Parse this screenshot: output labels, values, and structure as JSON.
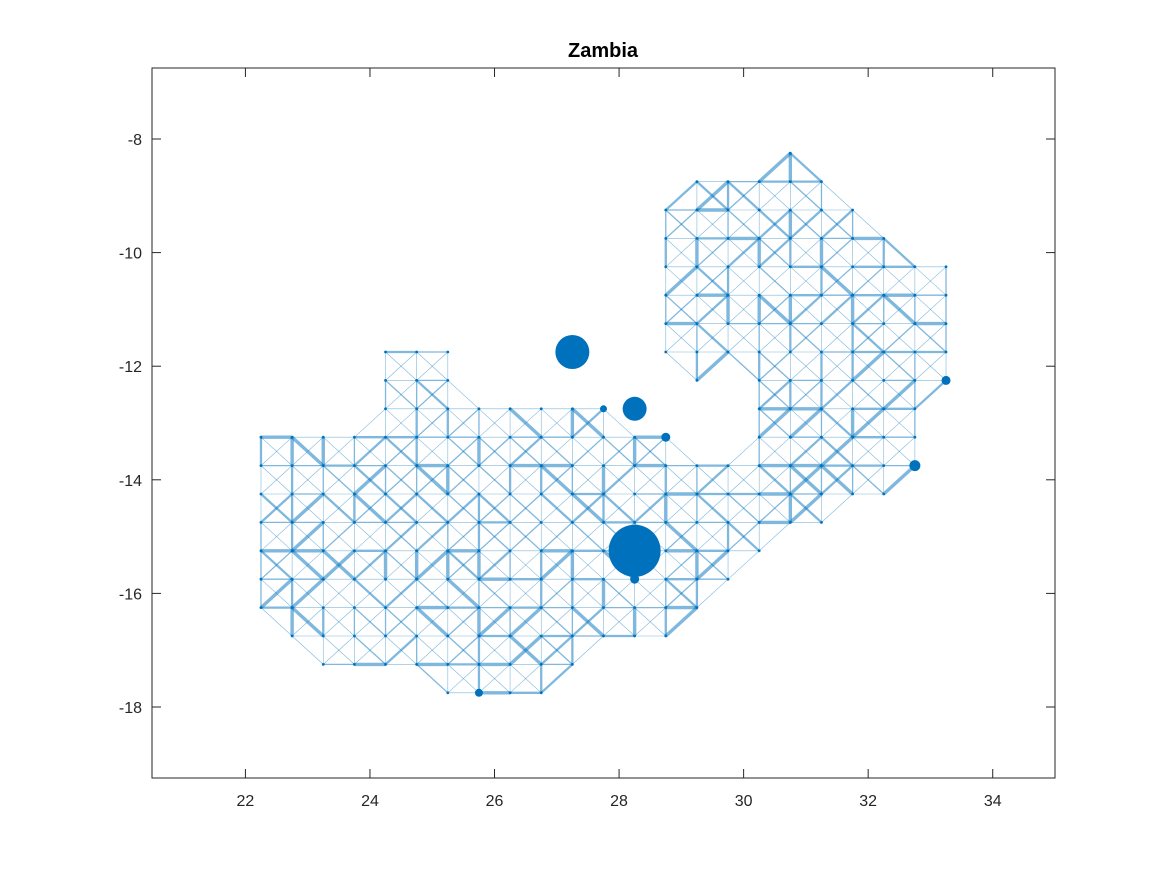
{
  "chart_data": {
    "type": "scatter",
    "title": "Zambia",
    "xlabel": "",
    "ylabel": "",
    "xlim": [
      20.5,
      35
    ],
    "ylim": [
      -19.25,
      -6.75
    ],
    "xticks": [
      22,
      24,
      26,
      28,
      30,
      32,
      34
    ],
    "yticks": [
      -8,
      -10,
      -12,
      -14,
      -16,
      -18
    ],
    "grid": false,
    "colors": {
      "node": "#0072bd",
      "edge": "#0072bd",
      "axes": "#262626"
    },
    "grid_step": 0.5,
    "rows": [
      {
        "y": -8.25,
        "xs": [
          [
            30.75,
            30.75
          ]
        ]
      },
      {
        "y": -8.75,
        "xs": [
          [
            29.25,
            31.25
          ]
        ]
      },
      {
        "y": -9.25,
        "xs": [
          [
            28.75,
            31.75
          ]
        ]
      },
      {
        "y": -9.75,
        "xs": [
          [
            28.75,
            32.25
          ]
        ]
      },
      {
        "y": -10.25,
        "xs": [
          [
            28.75,
            33.25
          ]
        ]
      },
      {
        "y": -10.75,
        "xs": [
          [
            28.75,
            33.25
          ]
        ]
      },
      {
        "y": -11.25,
        "xs": [
          [
            28.75,
            33.25
          ]
        ]
      },
      {
        "y": -11.75,
        "xs": [
          [
            24.25,
            25.25
          ],
          [
            28.75,
            33.25
          ]
        ]
      },
      {
        "y": -12.25,
        "xs": [
          [
            24.25,
            25.25
          ],
          [
            29.25,
            29.25
          ],
          [
            30.25,
            33.25
          ]
        ]
      },
      {
        "y": -12.75,
        "xs": [
          [
            24.25,
            27.75
          ],
          [
            30.25,
            32.75
          ]
        ]
      },
      {
        "y": -13.25,
        "xs": [
          [
            22.25,
            28.75
          ],
          [
            30.25,
            32.75
          ]
        ]
      },
      {
        "y": -13.75,
        "xs": [
          [
            22.25,
            32.75
          ]
        ]
      },
      {
        "y": -14.25,
        "xs": [
          [
            22.25,
            32.25
          ]
        ]
      },
      {
        "y": -14.75,
        "xs": [
          [
            22.25,
            31.25
          ]
        ]
      },
      {
        "y": -15.25,
        "xs": [
          [
            22.25,
            30.25
          ]
        ]
      },
      {
        "y": -15.75,
        "xs": [
          [
            22.25,
            29.75
          ]
        ]
      },
      {
        "y": -16.25,
        "xs": [
          [
            22.25,
            29.25
          ]
        ]
      },
      {
        "y": -16.75,
        "xs": [
          [
            22.75,
            28.75
          ]
        ]
      },
      {
        "y": -17.25,
        "xs": [
          [
            23.25,
            27.25
          ]
        ]
      },
      {
        "y": -17.75,
        "xs": [
          [
            25.25,
            26.75
          ]
        ]
      }
    ],
    "big_nodes": [
      {
        "x": 28.25,
        "y": -15.25,
        "r": 26
      },
      {
        "x": 27.25,
        "y": -11.75,
        "r": 17
      },
      {
        "x": 28.25,
        "y": -12.75,
        "r": 12
      },
      {
        "x": 32.75,
        "y": -13.75,
        "r": 5.5
      },
      {
        "x": 33.25,
        "y": -12.25,
        "r": 4.5
      },
      {
        "x": 28.75,
        "y": -13.25,
        "r": 4.5
      },
      {
        "x": 28.25,
        "y": -15.75,
        "r": 4.5
      },
      {
        "x": 25.75,
        "y": -17.75,
        "r": 4
      },
      {
        "x": 27.75,
        "y": -12.75,
        "r": 3.5
      }
    ]
  }
}
